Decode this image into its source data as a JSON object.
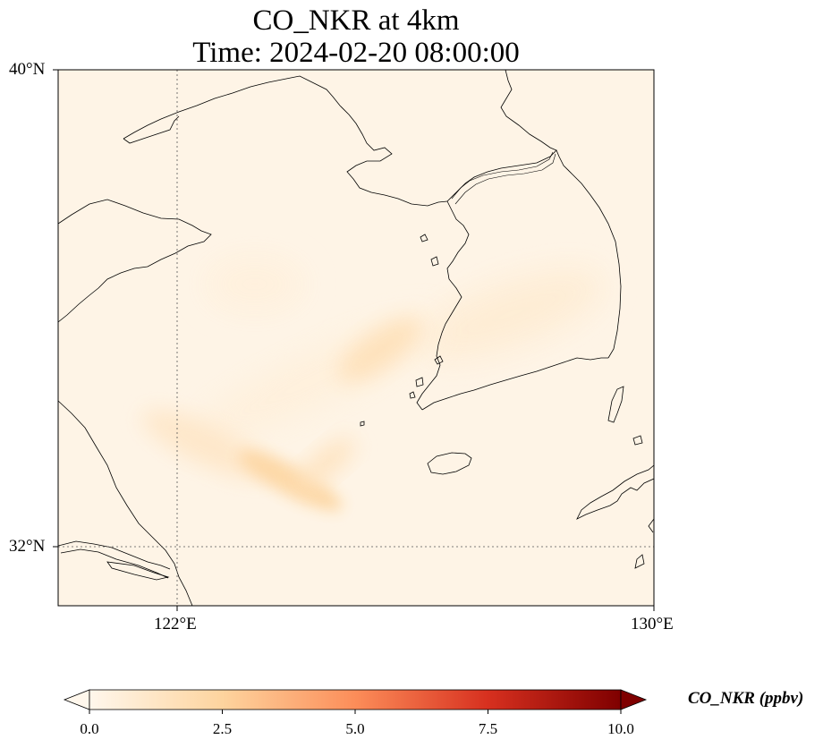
{
  "title": {
    "line1": "CO_NKR at 4km",
    "line2": "Time: 2024-02-20 08:00:00"
  },
  "axes": {
    "y_ticks": [
      "40°N",
      "32°N"
    ],
    "x_ticks": [
      "122°E",
      "130°E"
    ],
    "lon_range": [
      120,
      130
    ],
    "lat_range": [
      31,
      40
    ],
    "gridlines": "dotted at 122°E and 32°N"
  },
  "colorbar": {
    "label": "CO_NKR (ppbv)",
    "ticks": [
      "0.0",
      "2.5",
      "5.0",
      "7.5",
      "10.0"
    ],
    "range": [
      0,
      10
    ],
    "colormap": "OrRd",
    "colors": [
      "#fff7ec",
      "#fdd49e",
      "#fc8d59",
      "#d7301f",
      "#7f0000"
    ],
    "extend": "both"
  },
  "chart_data": {
    "type": "heatmap",
    "variable": "CO_NKR",
    "units": "ppbv",
    "features": [
      {
        "region": "plume south-west of Jeju",
        "lon": 123.9,
        "lat": 33.1,
        "value": 2.3
      },
      {
        "region": "plume near Korean west coast",
        "lon": 125.4,
        "lat": 35.3,
        "value": 1.6
      },
      {
        "region": "central Korea",
        "lon": 127.6,
        "lat": 35.9,
        "value": 0.8
      },
      {
        "region": "Shandong offshore",
        "lon": 123.3,
        "lat": 36.4,
        "value": 0.5
      }
    ]
  }
}
